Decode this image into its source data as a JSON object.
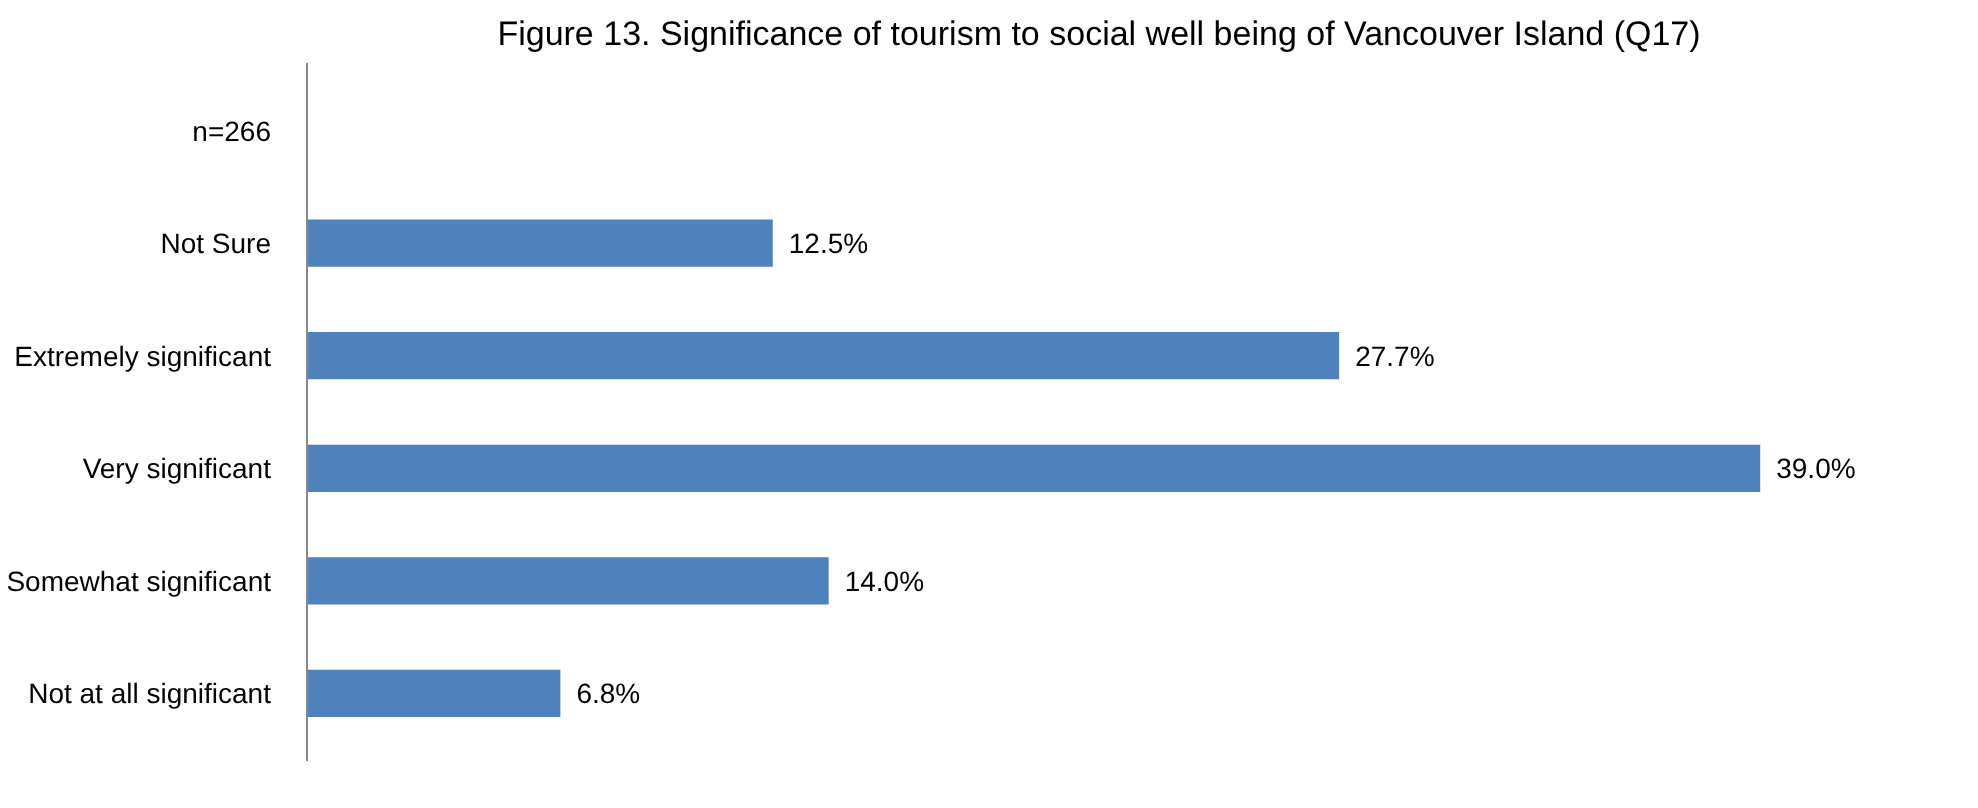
{
  "chart_data": {
    "type": "bar",
    "orientation": "horizontal",
    "title": "Figure 13. Significance of tourism to social well being of Vancouver Island (Q17)",
    "categories": [
      "n=266",
      "Not Sure",
      "Extremely significant",
      "Very significant",
      "Somewhat significant",
      "Not at all significant"
    ],
    "values": [
      null,
      12.5,
      27.7,
      39.0,
      14.0,
      6.8
    ],
    "color": "#4f81bd",
    "value_labels": [
      null,
      "12.5%",
      "27.7%",
      "39.0%",
      "14.0%",
      "6.8%"
    ],
    "grid": false
  }
}
